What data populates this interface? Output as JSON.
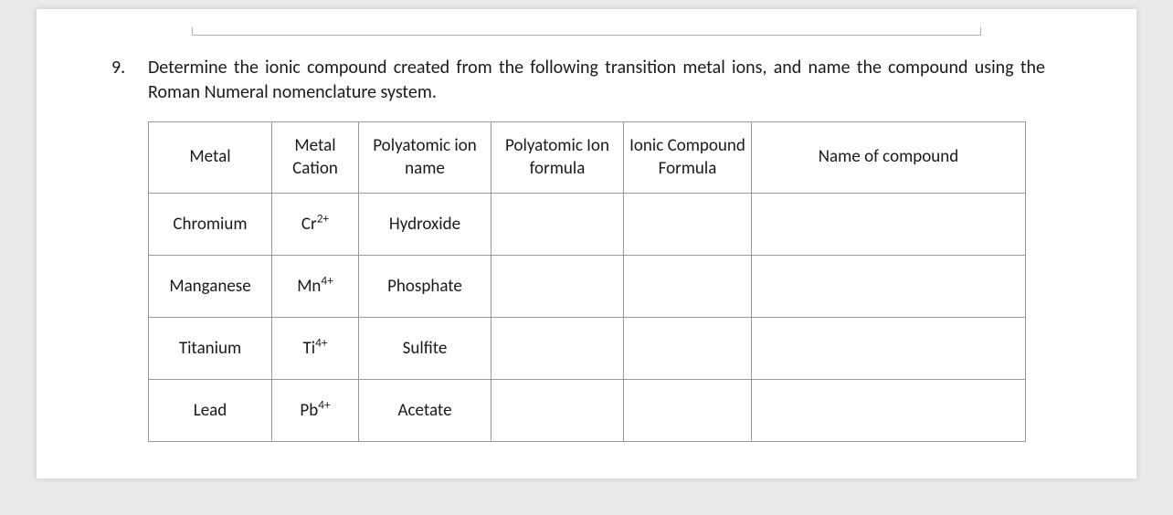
{
  "question": {
    "number": "9.",
    "text": "Determine the ionic compound created from the following transition metal ions, and name the compound using the Roman Numeral nomenclature system."
  },
  "table": {
    "headers": {
      "metal": "Metal",
      "metal_cation": "Metal Cation",
      "poly_name": "Polyatomic ion name",
      "poly_formula": "Polyatomic Ion formula",
      "compound_formula": "Ionic Compound Formula",
      "compound_name": "Name of compound"
    },
    "rows": [
      {
        "metal": "Chromium",
        "cation_base": "Cr",
        "cation_sup": "2+",
        "poly_name": "Hydroxide",
        "poly_formula": "",
        "compound_formula": "",
        "compound_name": ""
      },
      {
        "metal": "Manganese",
        "cation_base": "Mn",
        "cation_sup": "4+",
        "poly_name": "Phosphate",
        "poly_formula": "",
        "compound_formula": "",
        "compound_name": ""
      },
      {
        "metal": "Titanium",
        "cation_base": "Ti",
        "cation_sup": "4+",
        "poly_name": "Sulfite",
        "poly_formula": "",
        "compound_formula": "",
        "compound_name": ""
      },
      {
        "metal": "Lead",
        "cation_base": "Pb",
        "cation_sup": "4+",
        "poly_name": "Acetate",
        "poly_formula": "",
        "compound_formula": "",
        "compound_name": ""
      }
    ]
  }
}
